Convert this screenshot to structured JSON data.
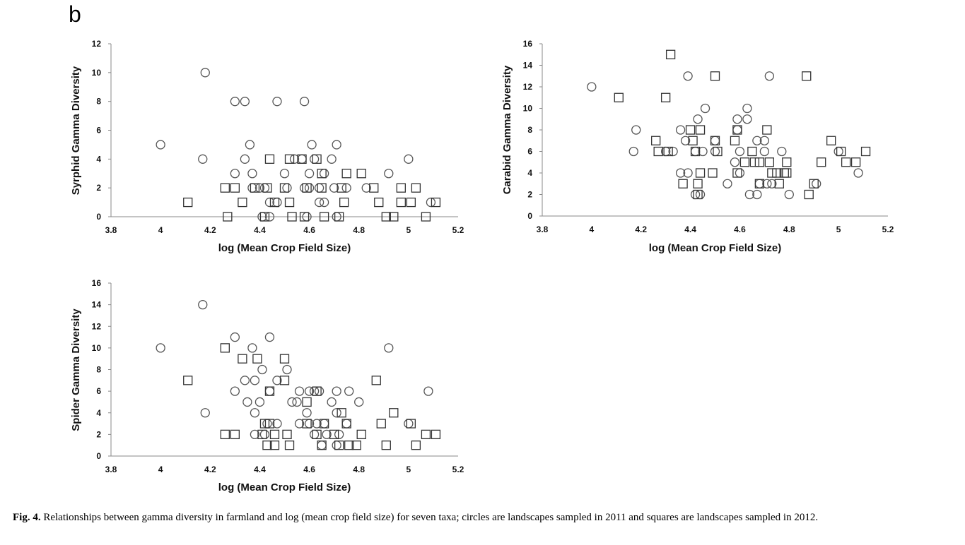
{
  "panel_letter": "b",
  "caption": {
    "fig_label": "Fig. 4.",
    "text": "Relationships between gamma diversity in farmland and log (mean crop field size) for seven taxa; circles are landscapes sampled in 2011 and squares are landscapes sampled in 2012."
  },
  "chart_data": [
    {
      "id": "syrphid",
      "type": "scatter",
      "xlabel": "log (Mean Crop Field Size)",
      "ylabel": "Syrphid Gamma Diversity",
      "xlim": [
        3.8,
        5.2
      ],
      "ylim": [
        0,
        12
      ],
      "xticks": [
        "3.8",
        "4",
        "4.2",
        "4.4",
        "4.6",
        "4.8",
        "5",
        "5.2"
      ],
      "yticks": [
        "0",
        "2",
        "4",
        "6",
        "8",
        "10",
        "12"
      ],
      "grid": false,
      "series": [
        {
          "marker": "circle",
          "points": [
            [
              4.0,
              5
            ],
            [
              4.17,
              4
            ],
            [
              4.18,
              10
            ],
            [
              4.3,
              8
            ],
            [
              4.34,
              8
            ],
            [
              4.47,
              8
            ],
            [
              4.58,
              8
            ],
            [
              4.36,
              5
            ],
            [
              4.61,
              5
            ],
            [
              4.71,
              5
            ],
            [
              4.3,
              3
            ],
            [
              4.34,
              4
            ],
            [
              4.37,
              3
            ],
            [
              4.5,
              3
            ],
            [
              4.54,
              4
            ],
            [
              4.57,
              4
            ],
            [
              4.6,
              3
            ],
            [
              4.62,
              4
            ],
            [
              4.66,
              3
            ],
            [
              4.69,
              4
            ],
            [
              4.37,
              2
            ],
            [
              4.4,
              2
            ],
            [
              4.42,
              2
            ],
            [
              4.51,
              2
            ],
            [
              4.58,
              2
            ],
            [
              4.6,
              2
            ],
            [
              4.64,
              2
            ],
            [
              4.7,
              2
            ],
            [
              4.75,
              2
            ],
            [
              4.83,
              2
            ],
            [
              4.92,
              3
            ],
            [
              5.0,
              4
            ],
            [
              4.44,
              1
            ],
            [
              4.47,
              1
            ],
            [
              4.64,
              1
            ],
            [
              4.66,
              1
            ],
            [
              5.09,
              1
            ],
            [
              4.41,
              0
            ],
            [
              4.44,
              0
            ],
            [
              4.59,
              0
            ],
            [
              4.71,
              0
            ]
          ]
        },
        {
          "marker": "square",
          "points": [
            [
              4.11,
              1
            ],
            [
              4.26,
              2
            ],
            [
              4.3,
              2
            ],
            [
              4.38,
              2
            ],
            [
              4.43,
              2
            ],
            [
              4.5,
              2
            ],
            [
              4.59,
              2
            ],
            [
              4.65,
              2
            ],
            [
              4.73,
              2
            ],
            [
              4.86,
              2
            ],
            [
              4.97,
              2
            ],
            [
              5.03,
              2
            ],
            [
              4.44,
              4
            ],
            [
              4.52,
              4
            ],
            [
              4.57,
              4
            ],
            [
              4.63,
              4
            ],
            [
              4.65,
              3
            ],
            [
              4.75,
              3
            ],
            [
              4.81,
              3
            ],
            [
              4.46,
              1
            ],
            [
              4.33,
              1
            ],
            [
              4.52,
              1
            ],
            [
              4.74,
              1
            ],
            [
              4.88,
              1
            ],
            [
              4.97,
              1
            ],
            [
              5.01,
              1
            ],
            [
              5.11,
              1
            ],
            [
              4.27,
              0
            ],
            [
              4.42,
              0
            ],
            [
              4.53,
              0
            ],
            [
              4.58,
              0
            ],
            [
              4.66,
              0
            ],
            [
              4.72,
              0
            ],
            [
              4.91,
              0
            ],
            [
              4.94,
              0
            ],
            [
              5.07,
              0
            ]
          ]
        }
      ]
    },
    {
      "id": "carabid",
      "type": "scatter",
      "xlabel": "log (Mean Crop Field Size)",
      "ylabel": "Carabid Gamma Diversity",
      "xlim": [
        3.8,
        5.2
      ],
      "ylim": [
        0,
        16
      ],
      "xticks": [
        "3.8",
        "4",
        "4.2",
        "4.4",
        "4.6",
        "4.8",
        "5",
        "5.2"
      ],
      "yticks": [
        "0",
        "2",
        "4",
        "6",
        "8",
        "10",
        "12",
        "14",
        "16"
      ],
      "grid": false,
      "series": [
        {
          "marker": "circle",
          "points": [
            [
              4.0,
              12
            ],
            [
              4.18,
              8
            ],
            [
              4.17,
              6
            ],
            [
              4.3,
              6
            ],
            [
              4.33,
              6
            ],
            [
              4.36,
              8
            ],
            [
              4.39,
              13
            ],
            [
              4.38,
              7
            ],
            [
              4.43,
              9
            ],
            [
              4.46,
              10
            ],
            [
              4.42,
              6
            ],
            [
              4.45,
              6
            ],
            [
              4.5,
              7
            ],
            [
              4.5,
              6
            ],
            [
              4.59,
              9
            ],
            [
              4.59,
              8
            ],
            [
              4.58,
              5
            ],
            [
              4.6,
              6
            ],
            [
              4.63,
              10
            ],
            [
              4.63,
              9
            ],
            [
              4.67,
              7
            ],
            [
              4.7,
              7
            ],
            [
              4.72,
              13
            ],
            [
              4.7,
              6
            ],
            [
              4.77,
              6
            ],
            [
              4.36,
              4
            ],
            [
              4.39,
              4
            ],
            [
              4.42,
              2
            ],
            [
              4.44,
              2
            ],
            [
              4.55,
              3
            ],
            [
              4.6,
              4
            ],
            [
              4.64,
              2
            ],
            [
              4.67,
              2
            ],
            [
              4.68,
              3
            ],
            [
              4.71,
              3
            ],
            [
              4.73,
              3
            ],
            [
              4.8,
              2
            ],
            [
              4.91,
              3
            ],
            [
              5.0,
              6
            ],
            [
              5.08,
              4
            ]
          ]
        },
        {
          "marker": "square",
          "points": [
            [
              4.11,
              11
            ],
            [
              4.3,
              11
            ],
            [
              4.32,
              15
            ],
            [
              4.5,
              13
            ],
            [
              4.87,
              13
            ],
            [
              4.26,
              7
            ],
            [
              4.27,
              6
            ],
            [
              4.31,
              6
            ],
            [
              4.4,
              8
            ],
            [
              4.44,
              8
            ],
            [
              4.41,
              7
            ],
            [
              4.42,
              6
            ],
            [
              4.5,
              7
            ],
            [
              4.51,
              6
            ],
            [
              4.58,
              7
            ],
            [
              4.59,
              8
            ],
            [
              4.62,
              5
            ],
            [
              4.65,
              6
            ],
            [
              4.66,
              5
            ],
            [
              4.71,
              8
            ],
            [
              4.68,
              5
            ],
            [
              4.72,
              5
            ],
            [
              4.75,
              4
            ],
            [
              4.78,
              4
            ],
            [
              4.79,
              5
            ],
            [
              4.37,
              3
            ],
            [
              4.43,
              3
            ],
            [
              4.44,
              4
            ],
            [
              4.43,
              2
            ],
            [
              4.49,
              4
            ],
            [
              4.59,
              4
            ],
            [
              4.68,
              3
            ],
            [
              4.76,
              3
            ],
            [
              4.73,
              4
            ],
            [
              4.79,
              4
            ],
            [
              4.88,
              2
            ],
            [
              4.9,
              3
            ],
            [
              4.93,
              5
            ],
            [
              4.97,
              7
            ],
            [
              5.01,
              6
            ],
            [
              5.03,
              5
            ],
            [
              5.07,
              5
            ],
            [
              5.11,
              6
            ]
          ]
        }
      ]
    },
    {
      "id": "spider",
      "type": "scatter",
      "xlabel": "log (Mean Crop Field Size)",
      "ylabel": "Spider Gamma Diversity",
      "xlim": [
        3.8,
        5.2
      ],
      "ylim": [
        0,
        16
      ],
      "xticks": [
        "3.8",
        "4",
        "4.2",
        "4.4",
        "4.6",
        "4.8",
        "5",
        "5.2"
      ],
      "yticks": [
        "0",
        "2",
        "4",
        "6",
        "8",
        "10",
        "12",
        "14",
        "16"
      ],
      "grid": false,
      "series": [
        {
          "marker": "circle",
          "points": [
            [
              4.0,
              10
            ],
            [
              4.17,
              14
            ],
            [
              4.18,
              4
            ],
            [
              4.3,
              11
            ],
            [
              4.37,
              10
            ],
            [
              4.44,
              11
            ],
            [
              4.3,
              6
            ],
            [
              4.34,
              7
            ],
            [
              4.38,
              7
            ],
            [
              4.41,
              8
            ],
            [
              4.44,
              6
            ],
            [
              4.47,
              7
            ],
            [
              4.51,
              8
            ],
            [
              4.56,
              6
            ],
            [
              4.6,
              6
            ],
            [
              4.62,
              6
            ],
            [
              4.64,
              6
            ],
            [
              4.71,
              6
            ],
            [
              4.76,
              6
            ],
            [
              5.08,
              6
            ],
            [
              4.92,
              10
            ],
            [
              4.35,
              5
            ],
            [
              4.4,
              5
            ],
            [
              4.53,
              5
            ],
            [
              4.55,
              5
            ],
            [
              4.59,
              4
            ],
            [
              4.6,
              3
            ],
            [
              4.63,
              3
            ],
            [
              4.66,
              3
            ],
            [
              4.71,
              4
            ],
            [
              4.69,
              5
            ],
            [
              4.8,
              5
            ],
            [
              4.38,
              4
            ],
            [
              4.38,
              2
            ],
            [
              4.43,
              3
            ],
            [
              4.47,
              3
            ],
            [
              4.42,
              2
            ],
            [
              4.56,
              3
            ],
            [
              4.62,
              2
            ],
            [
              4.67,
              2
            ],
            [
              4.72,
              2
            ],
            [
              4.75,
              3
            ],
            [
              4.65,
              1
            ],
            [
              4.71,
              1
            ],
            [
              5.0,
              3
            ]
          ]
        },
        {
          "marker": "square",
          "points": [
            [
              4.11,
              7
            ],
            [
              4.26,
              10
            ],
            [
              4.33,
              9
            ],
            [
              4.39,
              9
            ],
            [
              4.5,
              9
            ],
            [
              4.5,
              7
            ],
            [
              4.44,
              6
            ],
            [
              4.63,
              6
            ],
            [
              4.59,
              5
            ],
            [
              4.73,
              4
            ],
            [
              4.87,
              7
            ],
            [
              4.42,
              3
            ],
            [
              4.44,
              3
            ],
            [
              4.59,
              3
            ],
            [
              4.66,
              3
            ],
            [
              4.75,
              3
            ],
            [
              4.89,
              3
            ],
            [
              4.94,
              4
            ],
            [
              5.01,
              3
            ],
            [
              4.26,
              2
            ],
            [
              4.3,
              2
            ],
            [
              4.41,
              2
            ],
            [
              4.46,
              2
            ],
            [
              4.51,
              2
            ],
            [
              4.63,
              2
            ],
            [
              4.7,
              2
            ],
            [
              4.81,
              2
            ],
            [
              5.07,
              2
            ],
            [
              5.11,
              2
            ],
            [
              4.43,
              1
            ],
            [
              4.46,
              1
            ],
            [
              4.52,
              1
            ],
            [
              4.65,
              1
            ],
            [
              4.72,
              1
            ],
            [
              4.76,
              1
            ],
            [
              4.79,
              1
            ],
            [
              4.91,
              1
            ],
            [
              5.03,
              1
            ]
          ]
        }
      ]
    }
  ]
}
